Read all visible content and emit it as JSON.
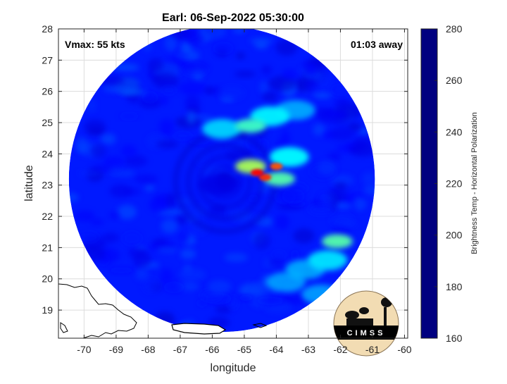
{
  "chart_data": {
    "type": "heatmap",
    "title": "Earl: 06-Sep-2022 05:30:00",
    "xlabel": "longitude",
    "ylabel": "latitude",
    "xlim": [
      -70.8,
      -59.9
    ],
    "ylim": [
      18.1,
      28
    ],
    "x_ticks": [
      -70,
      -69,
      -68,
      -67,
      -66,
      -65,
      -64,
      -63,
      -62,
      -61,
      -60
    ],
    "y_ticks": [
      19,
      20,
      21,
      22,
      23,
      24,
      25,
      26,
      27,
      28
    ],
    "grid": true,
    "annotations": {
      "vmax": "Vmax: 55 kts",
      "time_away": "01:03 away"
    },
    "colorbar": {
      "label": "Brightness Temp - Horizontal Polarization",
      "range": [
        160,
        280
      ],
      "ticks": [
        160,
        180,
        200,
        220,
        240,
        260,
        280
      ],
      "colormap": "jet"
    },
    "swath": {
      "center_lon": -65.7,
      "center_lat": 23.2,
      "radius_deg_lat": 4.9,
      "background_tb": 262
    },
    "storm_center": {
      "lon": -65.6,
      "lat": 23.1
    },
    "features": [
      {
        "name": "rainband core",
        "lon": -64.6,
        "lat": 23.4,
        "tb": 175
      },
      {
        "name": "rainband core",
        "lon": -64.35,
        "lat": 23.25,
        "tb": 180
      },
      {
        "name": "rainband core",
        "lon": -64.0,
        "lat": 23.6,
        "tb": 185
      },
      {
        "name": "rainband",
        "lon": -64.8,
        "lat": 23.6,
        "tb": 215
      },
      {
        "name": "rainband",
        "lon": -63.9,
        "lat": 23.2,
        "tb": 225
      },
      {
        "name": "rainband",
        "lon": -63.6,
        "lat": 23.9,
        "tb": 235
      },
      {
        "name": "northern band",
        "lon": -64.8,
        "lat": 24.9,
        "tb": 228
      },
      {
        "name": "northern band",
        "lon": -64.2,
        "lat": 25.2,
        "tb": 236
      },
      {
        "name": "northern band",
        "lon": -65.7,
        "lat": 24.8,
        "tb": 240
      },
      {
        "name": "northern band",
        "lon": -63.4,
        "lat": 25.4,
        "tb": 242
      },
      {
        "name": "outer band",
        "lon": -62.1,
        "lat": 21.2,
        "tb": 225
      },
      {
        "name": "outer band",
        "lon": -62.4,
        "lat": 20.6,
        "tb": 238
      },
      {
        "name": "outer band",
        "lon": -63.1,
        "lat": 20.3,
        "tb": 242
      },
      {
        "name": "outer band",
        "lon": -63.7,
        "lat": 19.9,
        "tb": 244
      },
      {
        "name": "outer band",
        "lon": -62.6,
        "lat": 19.5,
        "tb": 244
      },
      {
        "name": "eye region",
        "lon": -65.8,
        "lat": 23.0,
        "tb": 268
      }
    ]
  },
  "logo": {
    "text": "CIMSS"
  }
}
